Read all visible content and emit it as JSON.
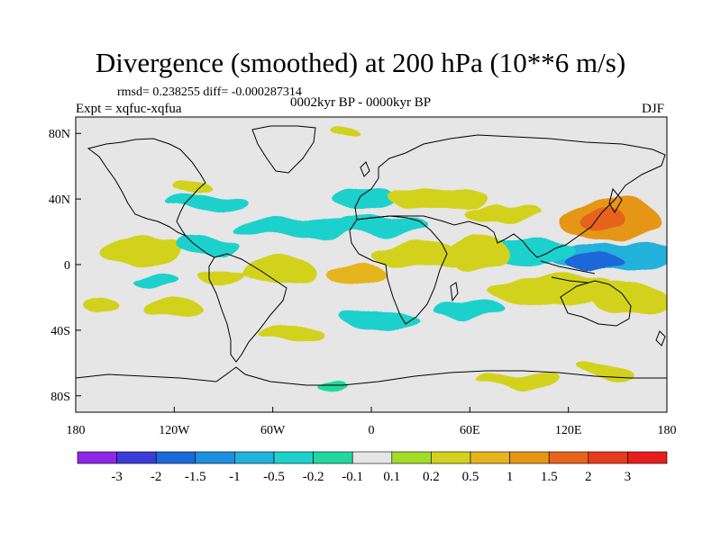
{
  "chart_data": {
    "type": "heatmap",
    "title": "Divergence (smoothed) at 200 hPa (10**6 m/s)",
    "stats_text": "rmsd= 0.238255  diff= -0.000287314",
    "period": "0002kyr BP - 0000kyr BP",
    "experiment": "Expt = xqfuc-xqfua",
    "season": "DJF",
    "x_axis": {
      "range": [
        -180,
        180
      ],
      "ticks": [
        {
          "value": -180,
          "label": "180"
        },
        {
          "value": -120,
          "label": "120W"
        },
        {
          "value": -60,
          "label": "60W"
        },
        {
          "value": 0,
          "label": "0"
        },
        {
          "value": 60,
          "label": "60E"
        },
        {
          "value": 120,
          "label": "120E"
        },
        {
          "value": 180,
          "label": "180"
        }
      ]
    },
    "y_axis": {
      "range": [
        -90,
        90
      ],
      "ticks": [
        {
          "value": 80,
          "label": "80N"
        },
        {
          "value": 40,
          "label": "40N"
        },
        {
          "value": 0,
          "label": "0"
        },
        {
          "value": -40,
          "label": "40S"
        },
        {
          "value": -80,
          "label": "80S"
        }
      ]
    },
    "colorbar": {
      "colors": [
        "#8f28e6",
        "#3c3cd9",
        "#1c68d8",
        "#1f8fe0",
        "#22b2dc",
        "#1ed1cc",
        "#22d89c",
        "#e6e6e6",
        "#a2dc28",
        "#d2d21e",
        "#e6b41e",
        "#e69614",
        "#e6641e",
        "#e63c1e",
        "#e61e1e"
      ],
      "labels": [
        "-3",
        "-2",
        "-1.5",
        "-1",
        "-0.5",
        "-0.2",
        "-0.1",
        "0.1",
        "0.2",
        "0.5",
        "1",
        "1.5",
        "2",
        "3"
      ]
    },
    "anomaly_regions": [
      {
        "lon": 145,
        "lat": 28,
        "rlon": 32,
        "rlat": 12,
        "value": 1.2
      },
      {
        "lon": 140,
        "lat": 28,
        "rlon": 14,
        "rlat": 6,
        "value": 1.7
      },
      {
        "lon": 150,
        "lat": 5,
        "rlon": 40,
        "rlat": 9,
        "value": -0.8
      },
      {
        "lon": 138,
        "lat": 2,
        "rlon": 18,
        "rlat": 6,
        "value": -1.6
      },
      {
        "lon": 95,
        "lat": 8,
        "rlon": 30,
        "rlat": 7,
        "value": -0.4
      },
      {
        "lon": 65,
        "lat": 8,
        "rlon": 18,
        "rlat": 10,
        "value": 0.4
      },
      {
        "lon": 30,
        "lat": 5,
        "rlon": 30,
        "rlat": 8,
        "value": 0.35
      },
      {
        "lon": 110,
        "lat": -15,
        "rlon": 40,
        "rlat": 9,
        "value": 0.35
      },
      {
        "lon": 158,
        "lat": -22,
        "rlon": 22,
        "rlat": 10,
        "value": 0.4
      },
      {
        "lon": -140,
        "lat": 8,
        "rlon": 25,
        "rlat": 8,
        "value": 0.35
      },
      {
        "lon": -100,
        "lat": 12,
        "rlon": 20,
        "rlat": 5,
        "value": -0.3
      },
      {
        "lon": -130,
        "lat": -10,
        "rlon": 14,
        "rlat": 4,
        "value": -0.3
      },
      {
        "lon": -90,
        "lat": -6,
        "rlon": 14,
        "rlat": 4,
        "value": 0.25
      },
      {
        "lon": -55,
        "lat": -5,
        "rlon": 22,
        "rlat": 9,
        "value": 0.45
      },
      {
        "lon": -10,
        "lat": -6,
        "rlon": 18,
        "rlat": 6,
        "value": 0.5
      },
      {
        "lon": -45,
        "lat": 22,
        "rlon": 40,
        "rlat": 6,
        "value": -0.3
      },
      {
        "lon": 5,
        "lat": 24,
        "rlon": 30,
        "rlat": 6,
        "value": -0.35
      },
      {
        "lon": -100,
        "lat": 38,
        "rlon": 25,
        "rlat": 5,
        "value": -0.25
      },
      {
        "lon": -5,
        "lat": 40,
        "rlon": 20,
        "rlat": 6,
        "value": -0.25
      },
      {
        "lon": 40,
        "lat": 40,
        "rlon": 30,
        "rlat": 6,
        "value": 0.35
      },
      {
        "lon": 80,
        "lat": 32,
        "rlon": 25,
        "rlat": 5,
        "value": 0.25
      },
      {
        "lon": 5,
        "lat": -33,
        "rlon": 25,
        "rlat": 6,
        "value": -0.3
      },
      {
        "lon": 60,
        "lat": -28,
        "rlon": 22,
        "rlat": 6,
        "value": -0.25
      },
      {
        "lon": -120,
        "lat": -28,
        "rlon": 18,
        "rlat": 6,
        "value": 0.25
      },
      {
        "lon": -165,
        "lat": -25,
        "rlon": 12,
        "rlat": 5,
        "value": 0.3
      },
      {
        "lon": -50,
        "lat": -42,
        "rlon": 20,
        "rlat": 5,
        "value": 0.3
      },
      {
        "lon": -15,
        "lat": 82,
        "rlon": 10,
        "rlat": 3,
        "value": 0.25
      },
      {
        "lon": -108,
        "lat": 48,
        "rlon": 12,
        "rlat": 4,
        "value": 0.2
      },
      {
        "lon": 90,
        "lat": -70,
        "rlon": 25,
        "rlat": 4,
        "value": 0.25
      },
      {
        "lon": 145,
        "lat": -65,
        "rlon": 18,
        "rlat": 4,
        "value": 0.3
      },
      {
        "lon": -25,
        "lat": -72,
        "rlon": 10,
        "rlat": 3,
        "value": -0.2
      }
    ]
  }
}
